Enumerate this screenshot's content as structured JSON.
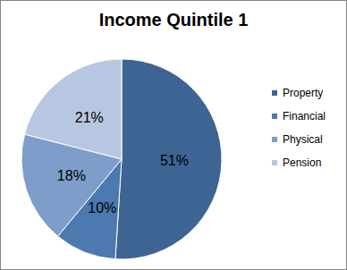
{
  "chart_data": {
    "type": "pie",
    "title": "Income Quintile 1",
    "categories": [
      "Property",
      "Financial",
      "Physical",
      "Pension"
    ],
    "values": [
      51,
      10,
      18,
      21
    ],
    "value_labels": [
      "51%",
      "10%",
      "18%",
      "21%"
    ],
    "colors": [
      "#3d6493",
      "#4b79b0",
      "#7f9dca",
      "#b8c7e1"
    ],
    "data_labels": true,
    "legend": "right"
  }
}
